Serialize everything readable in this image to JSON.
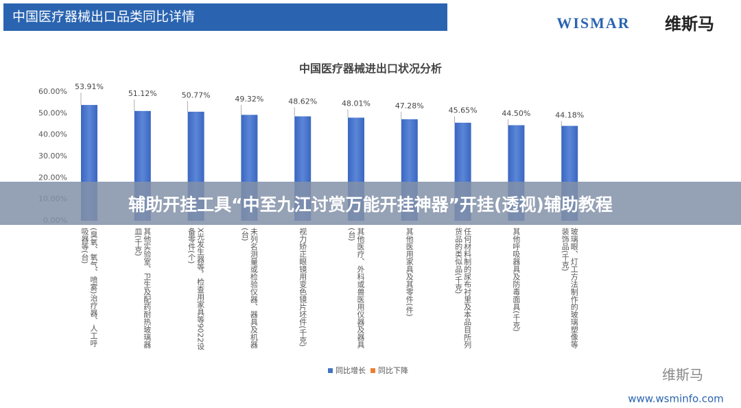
{
  "header": {
    "title": "中国医疗器械出口品类同比详情",
    "logo": "WISMAR",
    "logo_cn": "维斯马"
  },
  "chart_data": {
    "type": "bar",
    "title": "中国医疗器械进出口状况分析",
    "categories": [
      "(臭氧、氧气、喷雾)治疗器、人工呼吸器等(台)",
      "其他实验室、卫生及配药耐热玻璃器皿(千克)",
      "X光发生器等，检查用家具等9022设备零件(个)",
      "未列名测量或检验仪器、器具及机器(台)",
      "视力矫正眼镜用变色镜片坯件(千克)",
      "其他医疗、外科或兽医用仪器及器具(台)",
      "其他医用家具及其零件(件)",
      "任何材料制的尿布衬里及本品目所列货品的类似品(千克)",
      "其他呼吸器具及防毒面具(千克)",
      "玻璃眼、灯工方法制作的玻璃塑像等装饰品(千克)"
    ],
    "series": [
      {
        "name": "同比增长",
        "color": "#4472c4",
        "values": [
          53.91,
          51.12,
          50.77,
          49.32,
          48.62,
          48.01,
          47.28,
          45.65,
          44.5,
          44.18
        ],
        "value_labels": [
          "53.91%",
          "51.12%",
          "50.77%",
          "49.32%",
          "48.62%",
          "48.01%",
          "47.28%",
          "45.65%",
          "44.50%",
          "44.18%"
        ]
      },
      {
        "name": "同比下降",
        "color": "#ed7d31",
        "values": [
          null,
          null,
          null,
          null,
          null,
          null,
          null,
          null,
          null,
          null
        ]
      }
    ],
    "ylim": [
      0,
      60
    ],
    "yticks": [
      {
        "value": 0,
        "label": "0.00%"
      },
      {
        "value": 10,
        "label": "10.00%"
      },
      {
        "value": 20,
        "label": "20.00%"
      },
      {
        "value": 30,
        "label": "30.00%"
      },
      {
        "value": 40,
        "label": "40.00%"
      },
      {
        "value": 50,
        "label": "50.00%"
      },
      {
        "value": 60,
        "label": "60.00%"
      }
    ],
    "legend": "bottom"
  },
  "banner": "辅助开挂工具“中至九江讨赏万能开挂神器”开挂(透视)辅助教程",
  "footer": {
    "wechat": "维斯马",
    "url": "www.wsminfo.com"
  }
}
